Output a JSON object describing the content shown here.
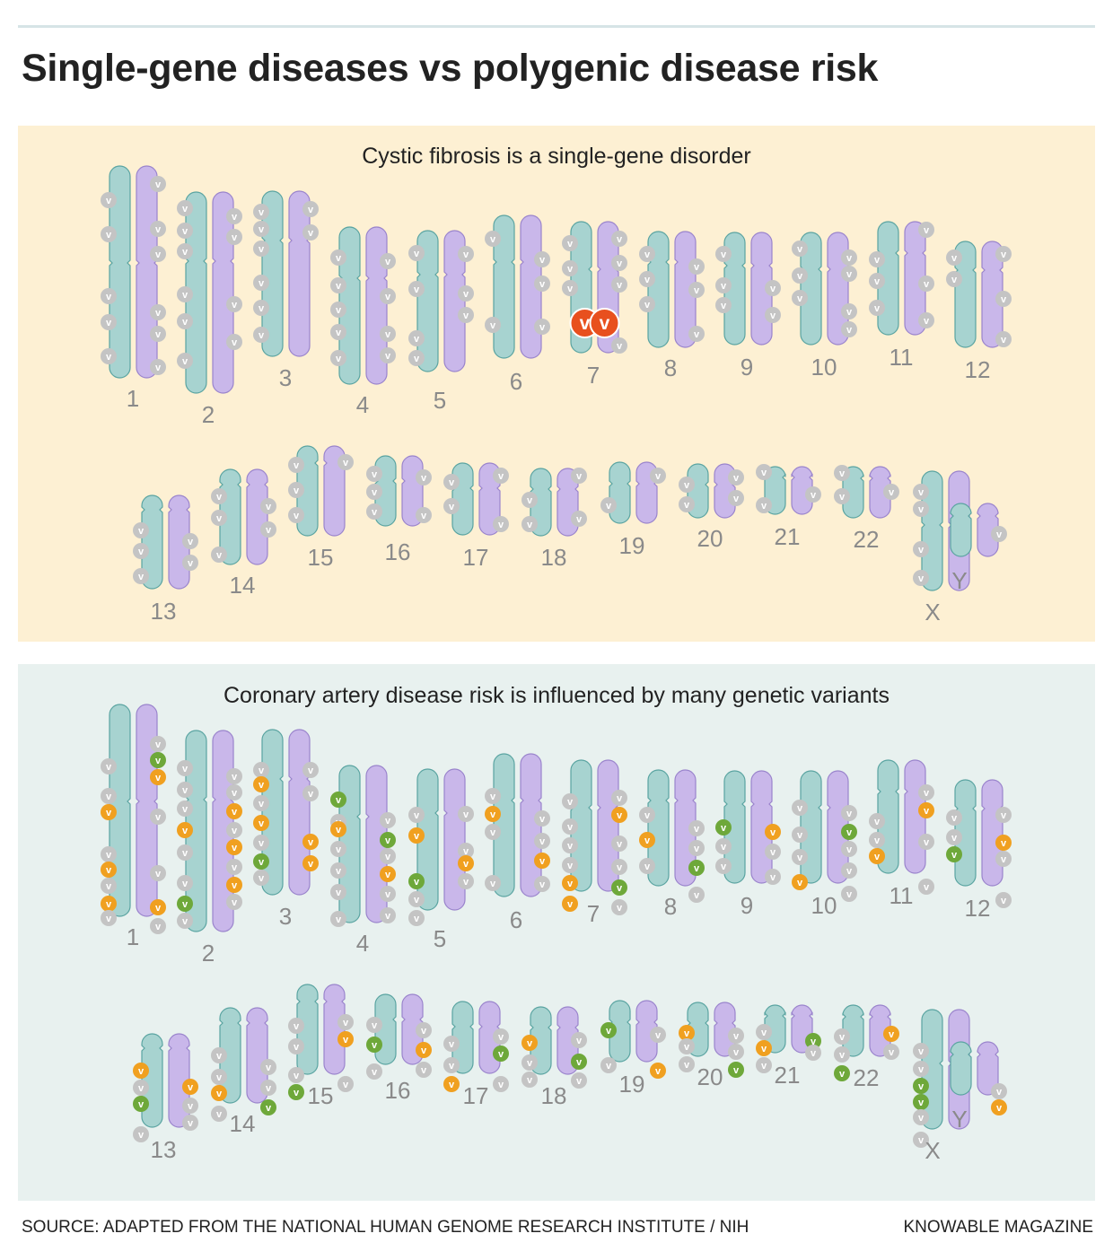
{
  "title": "Single-gene diseases vs polygenic disease risk",
  "panels": {
    "single_gene": {
      "title": "Cystic fibrosis is a single-gene disorder",
      "background": "#fdf0d3",
      "disease_gene_chromosome": "7"
    },
    "polygenic": {
      "title": "Coronary artery disease risk is influenced by many genetic variants",
      "background": "#e8f1ef"
    }
  },
  "variant_marker": "v",
  "legend_colors": {
    "chromatid_a": "#a7d3d0",
    "chromatid_b": "#c9b7ea",
    "variant_neutral": "#c4c4c4",
    "variant_disease": "#e8501e",
    "variant_risk_orange": "#f0a020",
    "variant_risk_green": "#6ea83a"
  },
  "chromosome_labels": [
    "1",
    "2",
    "3",
    "4",
    "5",
    "6",
    "7",
    "8",
    "9",
    "10",
    "11",
    "12",
    "13",
    "14",
    "15",
    "16",
    "17",
    "18",
    "19",
    "20",
    "21",
    "22",
    "X",
    "Y"
  ],
  "footer": {
    "source": "SOURCE: ADAPTED FROM THE NATIONAL HUMAN GENOME RESEARCH INSTITUTE / NIH",
    "brand": "KNOWABLE MAGAZINE"
  }
}
